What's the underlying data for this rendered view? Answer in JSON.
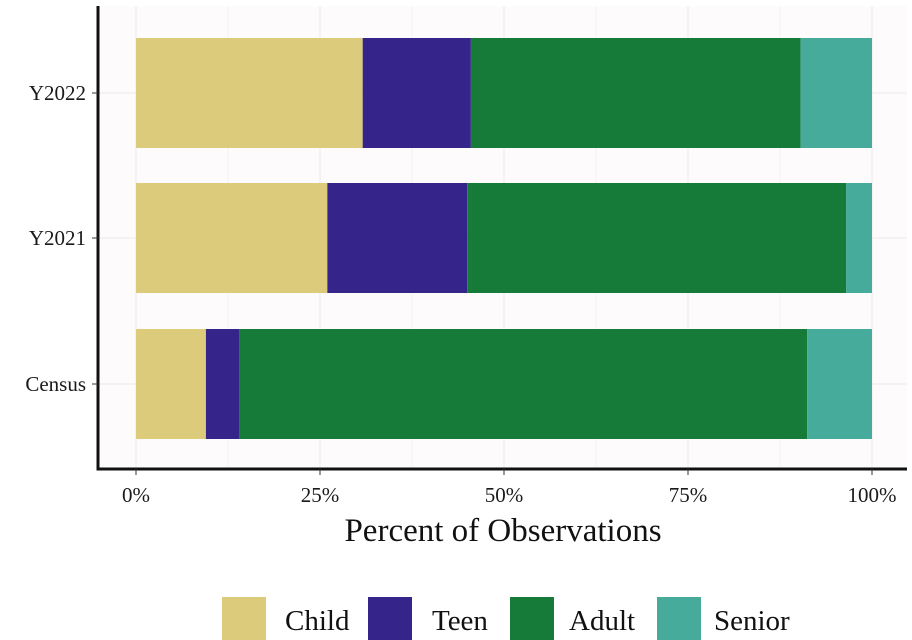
{
  "chart_data": {
    "type": "bar",
    "orientation": "horizontal",
    "stacked": true,
    "normalized": true,
    "categories": [
      "Census",
      "Y2021",
      "Y2022"
    ],
    "series": [
      {
        "name": "Child",
        "color": "#dccb7a",
        "values": [
          9.5,
          26.0,
          30.8
        ]
      },
      {
        "name": "Teen",
        "color": "#35248a",
        "values": [
          4.5,
          19.0,
          14.7
        ]
      },
      {
        "name": "Adult",
        "color": "#167a38",
        "values": [
          77.2,
          51.5,
          44.8
        ]
      },
      {
        "name": "Senior",
        "color": "#46ab9b",
        "values": [
          8.8,
          3.5,
          9.7
        ]
      }
    ],
    "xlabel": "Percent of Observations",
    "ylabel": "",
    "xlim": [
      0,
      100
    ],
    "xticks": [
      "0%",
      "25%",
      "50%",
      "75%",
      "100%"
    ],
    "grid": true,
    "legend_position": "bottom",
    "panel_background": "#fdfbfc"
  }
}
